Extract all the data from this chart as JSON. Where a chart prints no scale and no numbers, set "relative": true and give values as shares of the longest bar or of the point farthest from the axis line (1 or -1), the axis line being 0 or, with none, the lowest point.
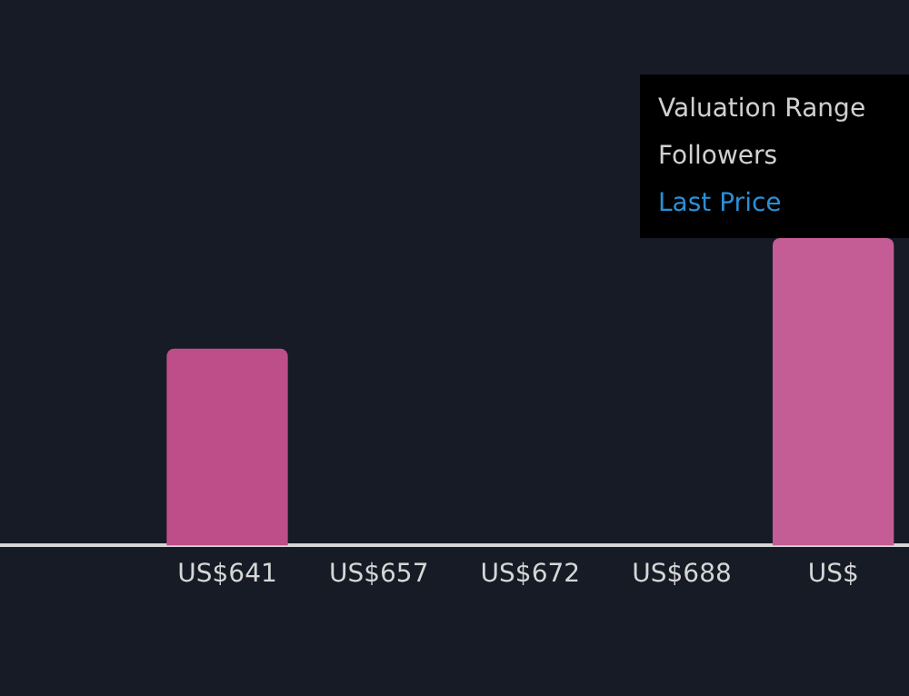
{
  "chart_data": {
    "type": "bar",
    "relative": true,
    "categories": [
      null,
      "US$641",
      "US$657",
      "US$672",
      "US$688",
      "US$"
    ],
    "values": [
      null,
      0.64,
      null,
      null,
      null,
      1
    ],
    "colors": [
      "#bd4e8a",
      "#bd4e8a",
      "#bd4e8a",
      "#bd4e8a",
      "#bd4e8a",
      "#c45c95"
    ],
    "annotations": [
      "Valuation Range",
      "Followers",
      "Last Price"
    ],
    "legend": false
  }
}
